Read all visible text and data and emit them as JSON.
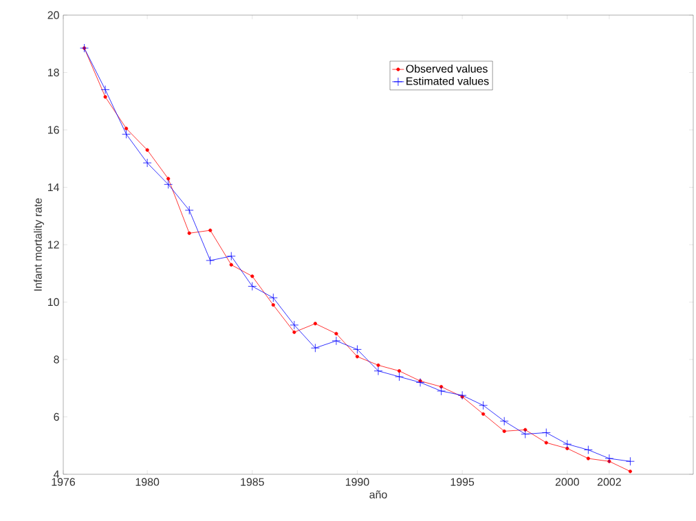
{
  "chart_data": {
    "type": "line",
    "xlabel": "año",
    "ylabel": "Infant mortality rate",
    "x": [
      1977,
      1978,
      1979,
      1980,
      1981,
      1982,
      1983,
      1984,
      1985,
      1986,
      1987,
      1988,
      1989,
      1990,
      1991,
      1992,
      1993,
      1994,
      1995,
      1996,
      1997,
      1998,
      1999,
      2000,
      2001,
      2002,
      2003
    ],
    "series": [
      {
        "name": "Observed values",
        "color": "#ff0000",
        "marker": "circle",
        "values": [
          18.85,
          17.15,
          16.05,
          15.3,
          14.3,
          12.4,
          12.5,
          11.3,
          10.9,
          9.9,
          8.95,
          9.25,
          8.9,
          8.1,
          7.8,
          7.6,
          7.25,
          7.05,
          6.7,
          6.1,
          5.5,
          5.55,
          5.1,
          4.9,
          4.55,
          4.45,
          4.1
        ]
      },
      {
        "name": "Estimated values",
        "color": "#0000ff",
        "marker": "cross",
        "values": [
          18.85,
          17.4,
          15.85,
          14.85,
          14.1,
          13.2,
          11.45,
          11.6,
          10.55,
          10.15,
          9.2,
          8.4,
          8.65,
          8.35,
          7.6,
          7.4,
          7.2,
          6.9,
          6.75,
          6.4,
          5.85,
          5.4,
          5.45,
          5.05,
          4.85,
          4.55,
          4.45
        ]
      }
    ],
    "xlim": [
      1976,
      2006
    ],
    "ylim": [
      4,
      20
    ],
    "xticks": [
      1976,
      1980,
      1985,
      1990,
      1995,
      2000,
      2002
    ],
    "yticks": [
      4,
      6,
      8,
      10,
      12,
      14,
      16,
      18,
      20
    ],
    "grid": false,
    "legend": "top",
    "line_style": "solid"
  }
}
